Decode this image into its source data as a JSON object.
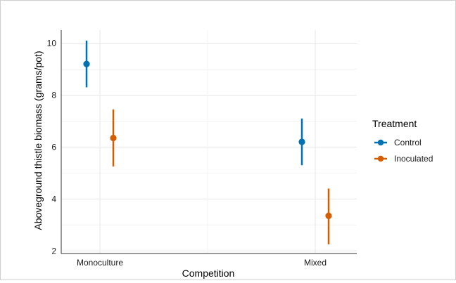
{
  "chart_data": {
    "type": "scatter",
    "title": "",
    "xlabel": "Competition",
    "ylabel": "Aboveground thistle biomass (grams/pot)",
    "categories": [
      "Monoculture",
      "Mixed"
    ],
    "ylim": [
      1.9,
      10.5
    ],
    "yticks": [
      2,
      4,
      6,
      8,
      10
    ],
    "grid": true,
    "legend": {
      "title": "Treatment",
      "position": "right"
    },
    "series": [
      {
        "name": "Control",
        "color": "#0072B2",
        "values": [
          9.2,
          6.2
        ],
        "lower": [
          8.3,
          5.3
        ],
        "upper": [
          10.1,
          7.1
        ]
      },
      {
        "name": "Inoculated",
        "color": "#D55E00",
        "values": [
          6.35,
          3.35
        ],
        "lower": [
          5.25,
          2.25
        ],
        "upper": [
          7.45,
          4.4
        ]
      }
    ]
  }
}
